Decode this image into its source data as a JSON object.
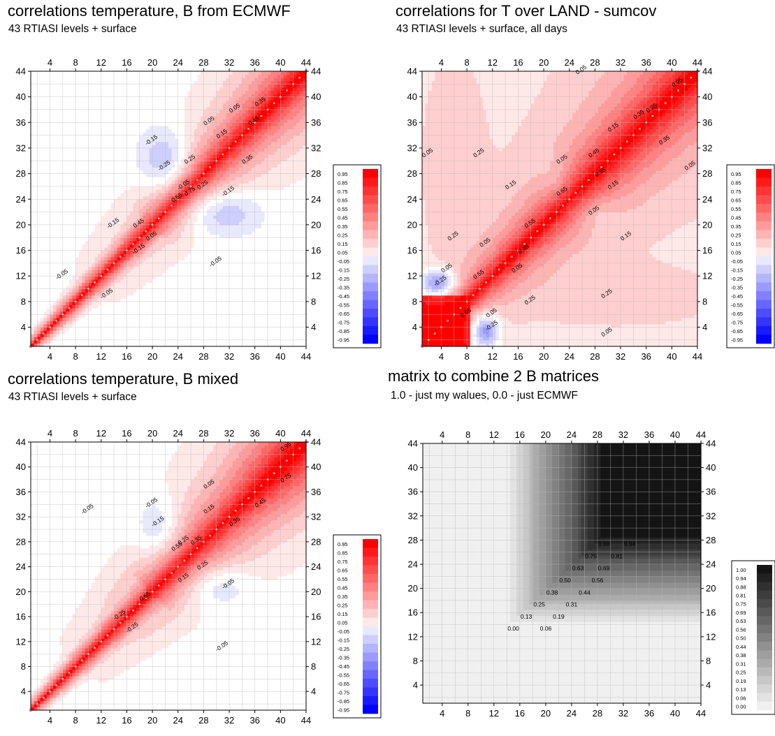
{
  "chart_data": [
    {
      "type": "heatmap",
      "title": "correlations temperature, B from ECMWF",
      "subtitle": "43 RTIASI levels + surface",
      "xlim": [
        1,
        44
      ],
      "ylim": [
        1,
        44
      ],
      "ticks": [
        "4",
        "8",
        "12",
        "16",
        "20",
        "24",
        "28",
        "32",
        "36",
        "40",
        "44"
      ],
      "legend": {
        "placement": "right",
        "entries": [
          "0.95",
          "0.85",
          "0.75",
          "0.65",
          "0.55",
          "0.45",
          "0.35",
          "0.25",
          "0.15",
          "0.05",
          "-0.05",
          "-0.15",
          "-0.25",
          "-0.35",
          "-0.45",
          "-0.55",
          "-0.65",
          "-0.75",
          "-0.85",
          "-0.95"
        ]
      },
      "contour_labels": [
        {
          "text": "-0.05",
          "x": 25,
          "y": 26
        },
        {
          "text": "-0.15",
          "x": 20,
          "y": 33
        },
        {
          "text": "-0.25",
          "x": 22,
          "y": 29
        },
        {
          "text": "-0.15",
          "x": 32,
          "y": 25
        },
        {
          "text": "-0.15",
          "x": 14,
          "y": 20
        },
        {
          "text": "-0.15",
          "x": 18,
          "y": 16
        },
        {
          "text": "-0.05",
          "x": 30,
          "y": 14
        },
        {
          "text": "-0.05",
          "x": 6,
          "y": 12
        },
        {
          "text": "-0.05",
          "x": 13,
          "y": 9
        },
        {
          "text": "0.05",
          "x": 29,
          "y": 36
        },
        {
          "text": "0.05",
          "x": 33,
          "y": 38
        },
        {
          "text": "0.15",
          "x": 31,
          "y": 34
        },
        {
          "text": "0.25",
          "x": 26,
          "y": 30
        },
        {
          "text": "0.35",
          "x": 35,
          "y": 30
        },
        {
          "text": "0.45",
          "x": 36,
          "y": 36
        },
        {
          "text": "0.55",
          "x": 24,
          "y": 24
        },
        {
          "text": "0.75",
          "x": 26,
          "y": 25
        },
        {
          "text": "0.35",
          "x": 37,
          "y": 39
        },
        {
          "text": "0.25",
          "x": 28,
          "y": 26
        },
        {
          "text": "0.45",
          "x": 18,
          "y": 20
        },
        {
          "text": "0.05",
          "x": 20,
          "y": 18
        }
      ],
      "field": "ecmwf"
    },
    {
      "type": "heatmap",
      "title": "correlations for T over LAND - sumcov",
      "subtitle": "43 RTIASI levels + surface, all days",
      "xlim": [
        1,
        44
      ],
      "ylim": [
        1,
        44
      ],
      "ticks": [
        "4",
        "8",
        "12",
        "16",
        "20",
        "24",
        "28",
        "32",
        "36",
        "40",
        "44"
      ],
      "legend": {
        "placement": "right",
        "entries": [
          "0.95",
          "0.85",
          "0.75",
          "0.65",
          "0.55",
          "0.45",
          "0.35",
          "0.25",
          "0.15",
          "0.05",
          "-0.05",
          "-0.15",
          "-0.25",
          "-0.35",
          "-0.45",
          "-0.55",
          "-0.65",
          "-0.75",
          "-0.85",
          "-0.95"
        ]
      },
      "contour_labels": [
        {
          "text": "0.05",
          "x": 26,
          "y": 44
        },
        {
          "text": "0.95",
          "x": 41,
          "y": 42
        },
        {
          "text": "0.25",
          "x": 37,
          "y": 38
        },
        {
          "text": "0.15",
          "x": 31,
          "y": 35
        },
        {
          "text": "0.35",
          "x": 35,
          "y": 37
        },
        {
          "text": "0.35",
          "x": 39,
          "y": 33
        },
        {
          "text": "0.05",
          "x": 2,
          "y": 31
        },
        {
          "text": "0.25",
          "x": 10,
          "y": 31
        },
        {
          "text": "0.15",
          "x": 15,
          "y": 26
        },
        {
          "text": "0.05",
          "x": 23,
          "y": 30
        },
        {
          "text": "0.45",
          "x": 28,
          "y": 31
        },
        {
          "text": "0.55",
          "x": 29,
          "y": 28
        },
        {
          "text": "0.65",
          "x": 23,
          "y": 25
        },
        {
          "text": "0.15",
          "x": 31,
          "y": 26
        },
        {
          "text": "0.05",
          "x": 28,
          "y": 22
        },
        {
          "text": "0.55",
          "x": 18,
          "y": 20
        },
        {
          "text": "0.15",
          "x": 33,
          "y": 18
        },
        {
          "text": "0.25",
          "x": 6,
          "y": 18
        },
        {
          "text": "0.05",
          "x": 11,
          "y": 17
        },
        {
          "text": "0.35",
          "x": 17,
          "y": 16
        },
        {
          "text": "0.05",
          "x": 16,
          "y": 13
        },
        {
          "text": "0.05",
          "x": 5,
          "y": 13
        },
        {
          "text": "0.55",
          "x": 10,
          "y": 12
        },
        {
          "text": "-0.25",
          "x": 4,
          "y": 11
        },
        {
          "text": "0.25",
          "x": 18,
          "y": 8
        },
        {
          "text": "0.25",
          "x": 30,
          "y": 9
        },
        {
          "text": "0.95",
          "x": 8,
          "y": 6
        },
        {
          "text": "0.05",
          "x": 12,
          "y": 6
        },
        {
          "text": "-0.25",
          "x": 12,
          "y": 4
        },
        {
          "text": "0.05",
          "x": 30,
          "y": 3
        },
        {
          "text": "0.05",
          "x": 43,
          "y": 29
        }
      ],
      "field": "land"
    },
    {
      "type": "heatmap",
      "title": "correlations temperature, B mixed",
      "subtitle": "43 RTIASI levels + surface",
      "xlim": [
        1,
        44
      ],
      "ylim": [
        1,
        44
      ],
      "ticks": [
        "4",
        "8",
        "12",
        "16",
        "20",
        "24",
        "28",
        "32",
        "36",
        "40",
        "44"
      ],
      "legend": {
        "placement": "right",
        "entries": [
          "0.95",
          "0.85",
          "0.75",
          "0.65",
          "0.55",
          "0.45",
          "0.35",
          "0.25",
          "0.15",
          "0.05",
          "-0.05",
          "-0.15",
          "-0.25",
          "-0.35",
          "-0.45",
          "-0.55",
          "-0.65",
          "-0.75",
          "-0.85",
          "-0.95"
        ]
      },
      "contour_labels": [
        {
          "text": "0.95",
          "x": 41,
          "y": 43
        },
        {
          "text": "0.75",
          "x": 41,
          "y": 38
        },
        {
          "text": "0.05",
          "x": 29,
          "y": 37
        },
        {
          "text": "0.15",
          "x": 29,
          "y": 33
        },
        {
          "text": "0.45",
          "x": 37,
          "y": 34
        },
        {
          "text": "0.35",
          "x": 33,
          "y": 31
        },
        {
          "text": "-0.05",
          "x": 10,
          "y": 33
        },
        {
          "text": "-0.05",
          "x": 20,
          "y": 34
        },
        {
          "text": "-0.15",
          "x": 21,
          "y": 31
        },
        {
          "text": "0.25",
          "x": 25,
          "y": 28
        },
        {
          "text": "0.55",
          "x": 24,
          "y": 27
        },
        {
          "text": "0.35",
          "x": 27,
          "y": 28
        },
        {
          "text": "0.25",
          "x": 28,
          "y": 24
        },
        {
          "text": "0.15",
          "x": 25,
          "y": 22
        },
        {
          "text": "-0.05",
          "x": 32,
          "y": 21
        },
        {
          "text": "0.65",
          "x": 19,
          "y": 19
        },
        {
          "text": "-0.25",
          "x": 15,
          "y": 16
        },
        {
          "text": "-0.25",
          "x": 17,
          "y": 14
        },
        {
          "text": "-0.05",
          "x": 31,
          "y": 11
        }
      ],
      "field": "mixed"
    },
    {
      "type": "heatmap",
      "title": "matrix to combine 2 B matrices",
      "subtitle": "1.0 - just my walues, 0.0 - just ECMWF",
      "xlim": [
        1,
        44
      ],
      "ylim": [
        1,
        44
      ],
      "ticks": [
        "4",
        "8",
        "12",
        "16",
        "20",
        "24",
        "28",
        "32",
        "36",
        "40",
        "44"
      ],
      "legend": {
        "placement": "right",
        "entries": [
          "1.00",
          "0.94",
          "0.88",
          "0.81",
          "0.75",
          "0.69",
          "0.63",
          "0.56",
          "0.50",
          "0.44",
          "0.38",
          "0.31",
          "0.25",
          "0.19",
          "0.13",
          "0.06",
          "0.00"
        ]
      },
      "contour_labels": [
        {
          "text": "0.88",
          "x": 29,
          "y": 27
        },
        {
          "text": "0.94",
          "x": 33,
          "y": 27
        },
        {
          "text": "0.75",
          "x": 27,
          "y": 25
        },
        {
          "text": "0.81",
          "x": 31,
          "y": 25
        },
        {
          "text": "0.63",
          "x": 25,
          "y": 23
        },
        {
          "text": "0.69",
          "x": 29,
          "y": 23
        },
        {
          "text": "0.50",
          "x": 23,
          "y": 21
        },
        {
          "text": "0.56",
          "x": 28,
          "y": 21
        },
        {
          "text": "0.38",
          "x": 21,
          "y": 19
        },
        {
          "text": "0.44",
          "x": 26,
          "y": 19
        },
        {
          "text": "0.25",
          "x": 19,
          "y": 17
        },
        {
          "text": "0.31",
          "x": 24,
          "y": 17
        },
        {
          "text": "0.13",
          "x": 17,
          "y": 15
        },
        {
          "text": "0.19",
          "x": 22,
          "y": 15
        },
        {
          "text": "0.00",
          "x": 15,
          "y": 13
        },
        {
          "text": "0.06",
          "x": 20,
          "y": 13
        }
      ],
      "field": "combine"
    }
  ]
}
